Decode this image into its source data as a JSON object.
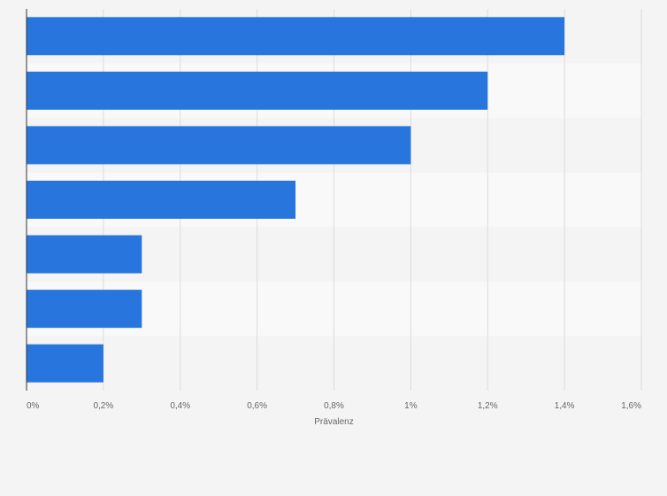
{
  "chart_data": {
    "type": "bar",
    "orientation": "horizontal",
    "title": "",
    "xlabel": "Prävalenz",
    "ylabel": "",
    "categories": [
      "",
      "",
      "",
      "",
      "",
      "",
      ""
    ],
    "values": [
      1.4,
      1.2,
      1.0,
      0.7,
      0.3,
      0.3,
      0.2
    ],
    "xlim": [
      0,
      1.6
    ],
    "x_ticks": [
      0,
      0.2,
      0.4,
      0.6,
      0.8,
      1.0,
      1.2,
      1.4,
      1.6
    ],
    "x_tick_labels": [
      "0%",
      "0,2%",
      "0,4%",
      "0,6%",
      "0,8%",
      "1%",
      "1,2%",
      "1,4%",
      "1,6%"
    ],
    "grid": true,
    "legend": "none"
  },
  "colors": {
    "bar": "#2876dd",
    "background": "#f4f4f4",
    "band_alt": "#f9f9f9",
    "grid": "#dcdcdc",
    "axis": "#333333",
    "text": "#666666"
  }
}
